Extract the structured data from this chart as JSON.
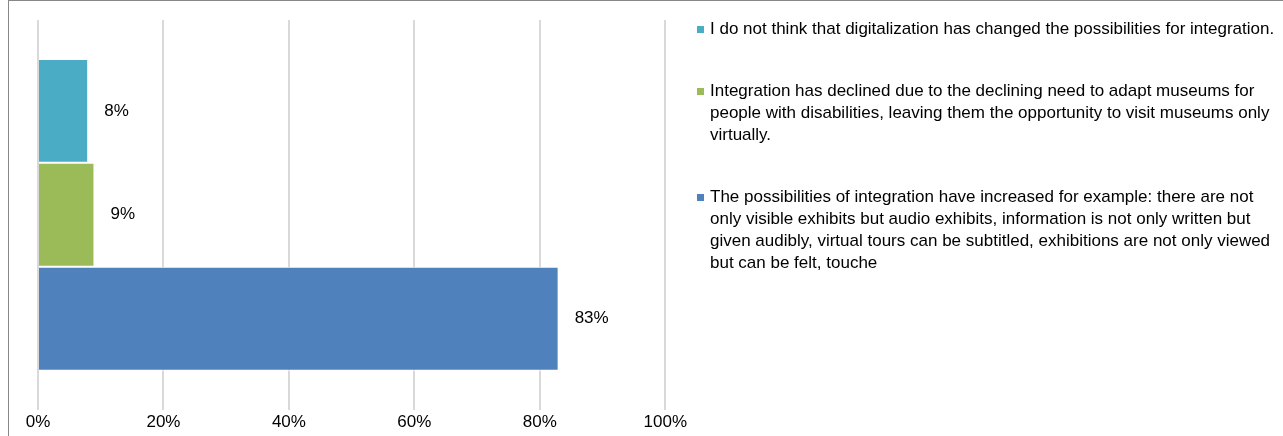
{
  "chart_data": {
    "type": "bar",
    "orientation": "horizontal",
    "categories": [
      null
    ],
    "series": [
      {
        "name": "I do not think that digitalization has changed the possibilities for integration.",
        "color": "#4bacc6",
        "values": [
          8
        ],
        "value_labels": [
          "8%"
        ]
      },
      {
        "name": "Integration has declined due to the declining need to adapt museums for people with disabilities, leaving them the opportunity to visit museums only virtually.",
        "color": "#9bbb59",
        "values": [
          9
        ],
        "value_labels": [
          "9%"
        ]
      },
      {
        "name": "The possibilities of integration have increased for example: there are not only visible exhibits but audio exhibits, information is not only written but given audibly, virtual tours can be subtitled, exhibitions are not only viewed but can be felt, touche",
        "color": "#4f81bd",
        "values": [
          83
        ],
        "value_labels": [
          "83%"
        ]
      }
    ],
    "xlim": [
      0,
      100
    ],
    "xticks": [
      {
        "value": 0,
        "label": "0%"
      },
      {
        "value": 20,
        "label": "20%"
      },
      {
        "value": 40,
        "label": "40%"
      },
      {
        "value": 60,
        "label": "60%"
      },
      {
        "value": 80,
        "label": "80%"
      },
      {
        "value": 100,
        "label": "100%"
      }
    ],
    "grid": "x",
    "legend": "right"
  }
}
